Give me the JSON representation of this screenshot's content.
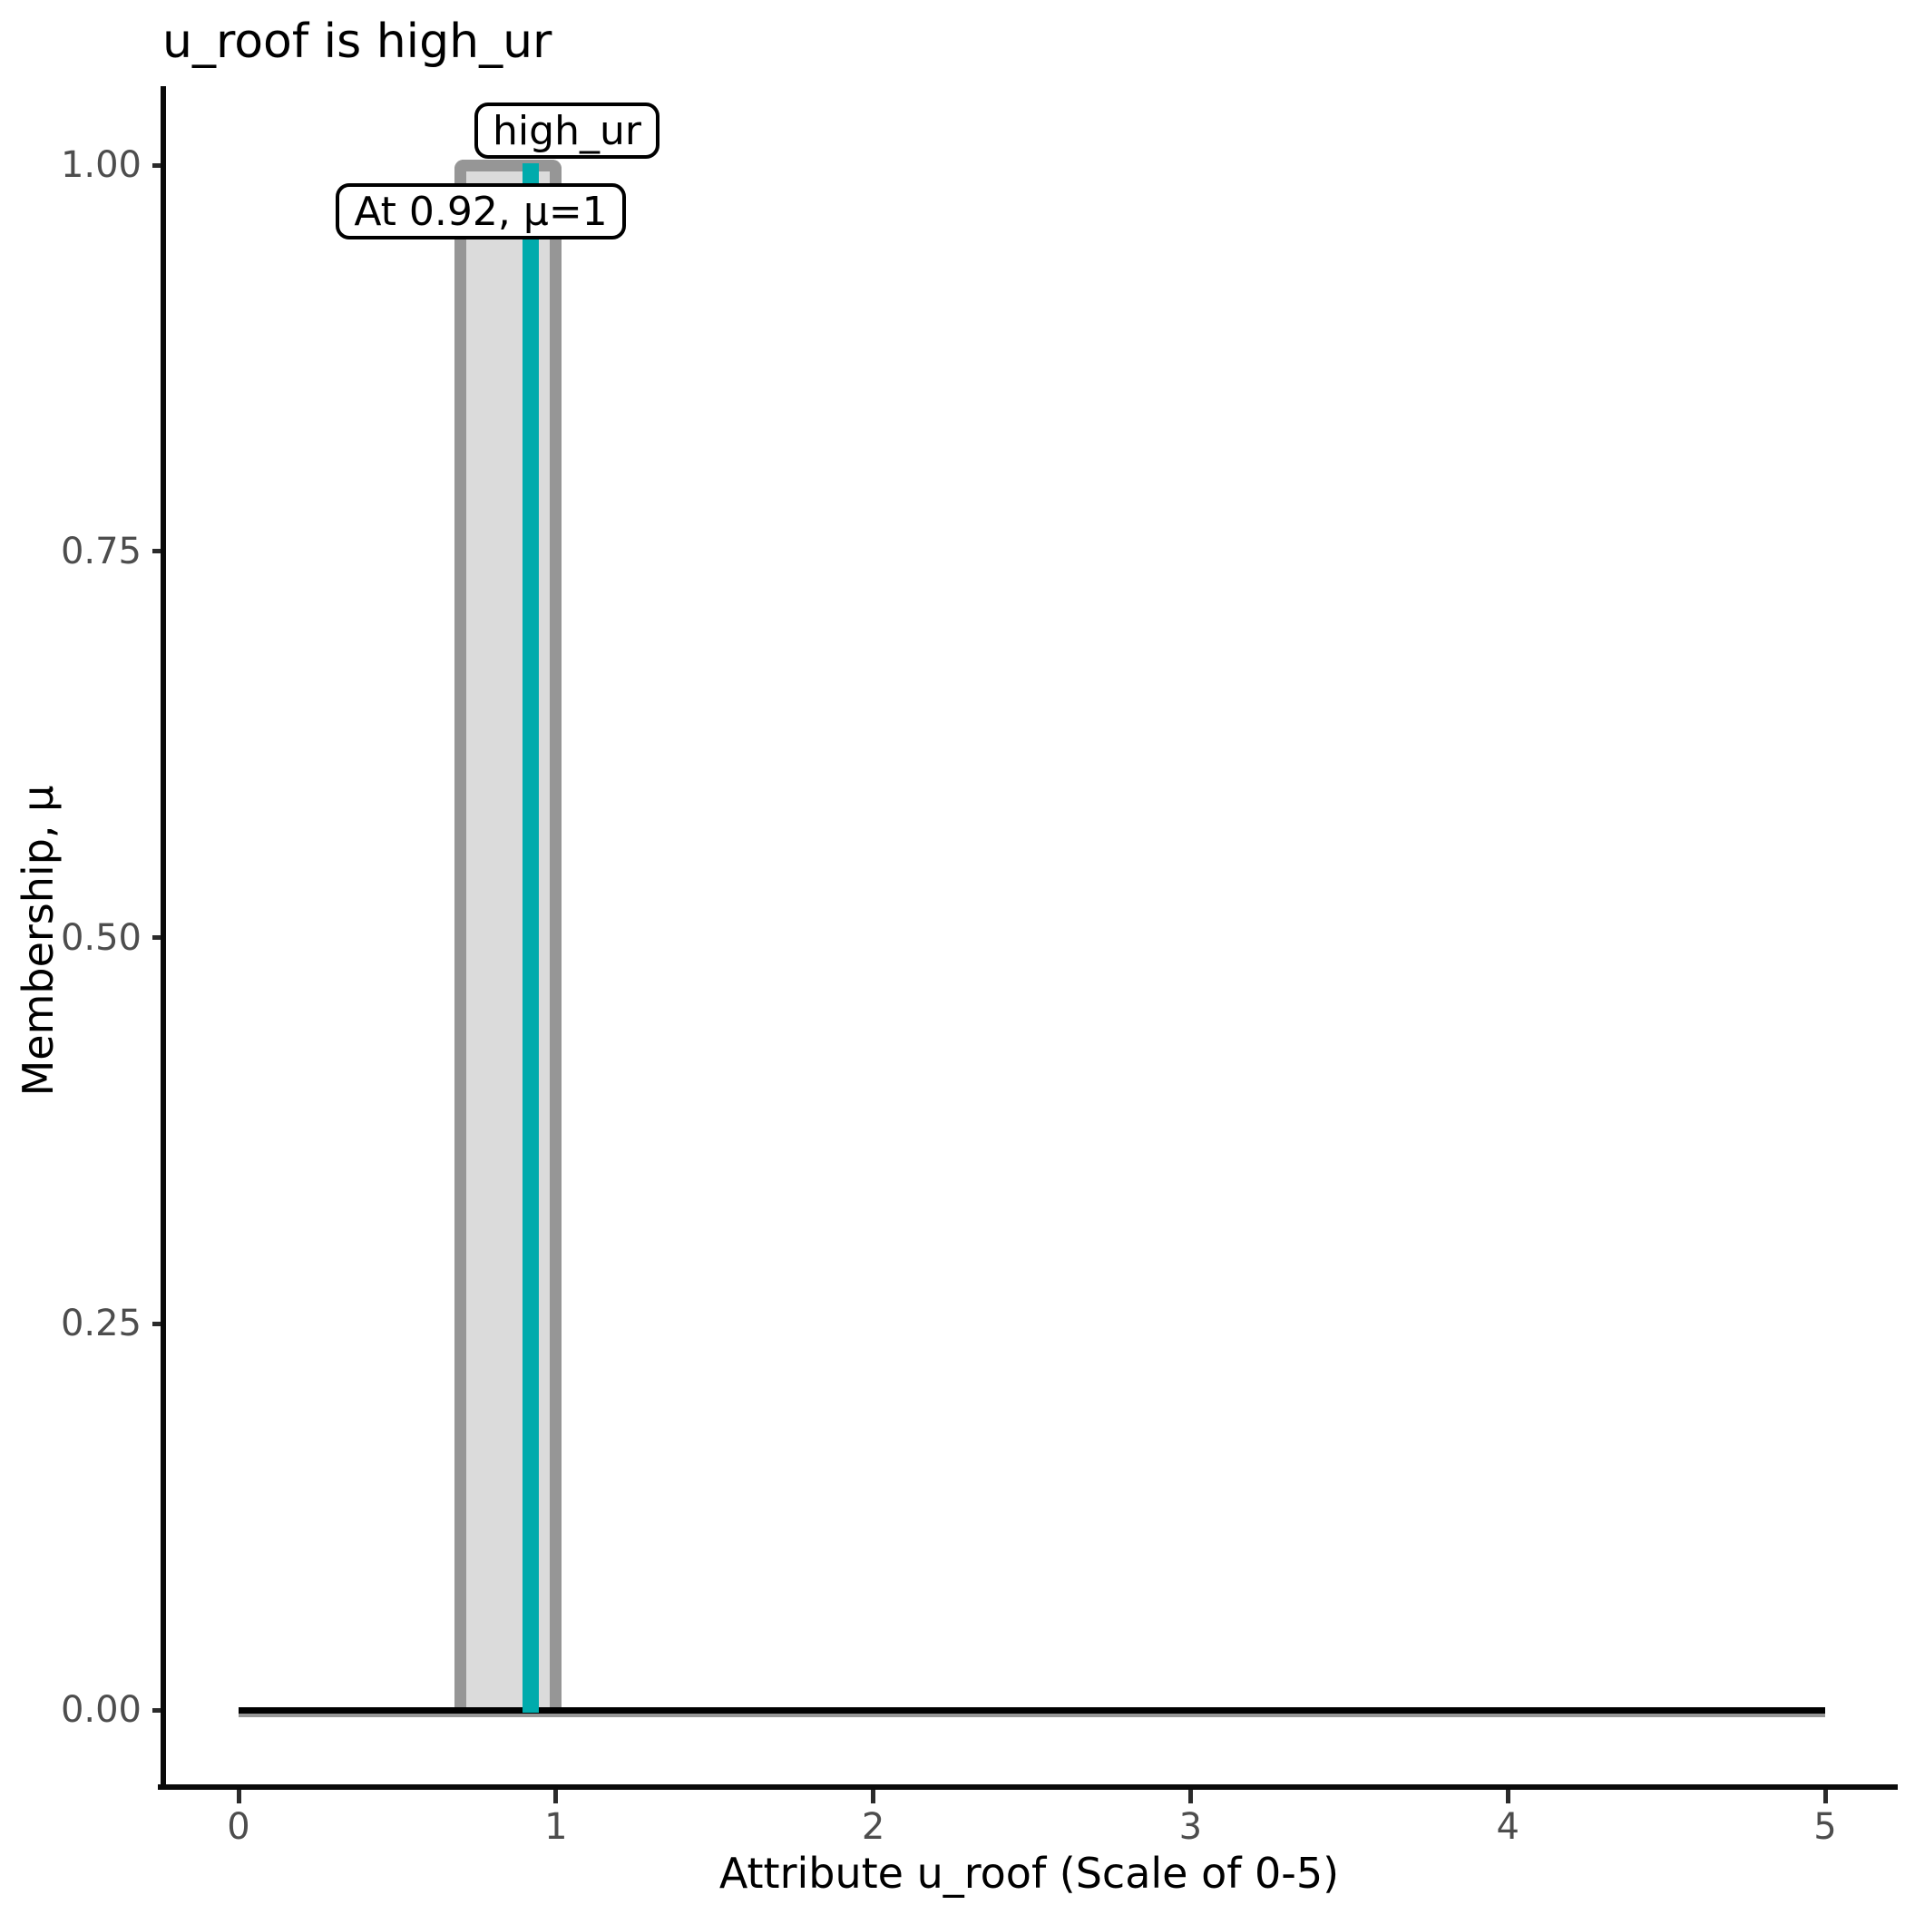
{
  "chart_data": {
    "type": "area",
    "title": "u_roof is high_ur",
    "xlabel": "Attribute u_roof (Scale of 0-5)",
    "ylabel": "Membership, μ",
    "xlim": [
      0,
      5
    ],
    "ylim": [
      0,
      1
    ],
    "x_tick_values": [
      0,
      1,
      2,
      3,
      4,
      5
    ],
    "x_tick_labels": [
      "0",
      "1",
      "2",
      "3",
      "4",
      "5"
    ],
    "y_tick_values": [
      0,
      0.25,
      0.5,
      0.75,
      1
    ],
    "y_tick_labels": [
      "0.00",
      "0.25",
      "0.50",
      "0.75",
      "1.00"
    ],
    "grid": false,
    "legend": false,
    "series": [
      {
        "name": "high_ur",
        "kind": "membership-function",
        "points_x": [
          0,
          0.7,
          0.7,
          1.0,
          1.0,
          5
        ],
        "points_mu": [
          0,
          0,
          1,
          1,
          0,
          0
        ],
        "plateau": [
          0.7,
          1.0
        ],
        "line_color": "#969696",
        "fill_color": "#DBDBDB"
      }
    ],
    "marker": {
      "x": 0.92,
      "mu": 1,
      "color": "#00ABAC"
    },
    "annotations": [
      {
        "text": "high_ur"
      },
      {
        "text": "At 0.92, μ=1"
      }
    ],
    "colors": {
      "axis": "#0a0a0a",
      "tick_label": "#4d4d4d",
      "zero_line": "#000000"
    }
  }
}
